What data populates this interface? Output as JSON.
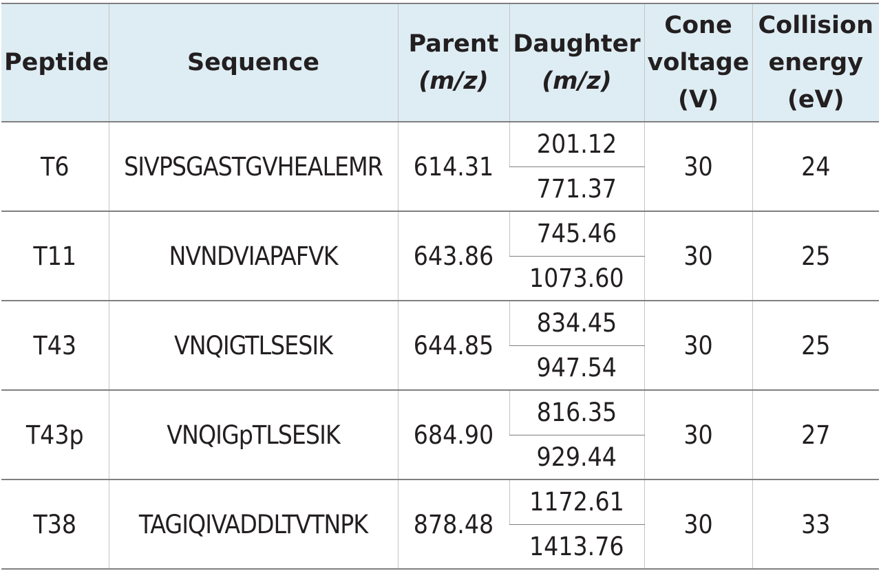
{
  "headers": {
    "peptide": "Peptide",
    "sequence": "Sequence",
    "parent": [
      "Parent",
      "(m/z)"
    ],
    "daughter": [
      "Daughter",
      "(m/z)"
    ],
    "cone_voltage": [
      "Cone",
      "voltage",
      "(V)"
    ],
    "collision_energy": [
      "Collision",
      "energy",
      "(eV)"
    ]
  },
  "rows": [
    {
      "peptide": "T6",
      "sequence": "SIVPSGASTGVHEALEMR",
      "parent": "614.31",
      "daughters": [
        "201.12",
        "771.37"
      ],
      "cone_voltage": "30",
      "collision_energy": "24"
    },
    {
      "peptide": "T11",
      "sequence": "NVNDVIAPAFVK",
      "parent": "643.86",
      "daughters": [
        "745.46",
        "1073.60"
      ],
      "cone_voltage": "30",
      "collision_energy": "25"
    },
    {
      "peptide": "T43",
      "sequence": "VNQIGTLSESIK",
      "parent": "644.85",
      "daughters": [
        "834.45",
        "947.54"
      ],
      "cone_voltage": "30",
      "collision_energy": "25"
    },
    {
      "peptide": "T43p",
      "sequence": "VNQIGpTLSESIK",
      "parent": "684.90",
      "daughters": [
        "816.35",
        "929.44"
      ],
      "cone_voltage": "30",
      "collision_energy": "27"
    },
    {
      "peptide": "T38",
      "sequence": "TAGIQIVADDLTVTNPK",
      "parent": "878.48",
      "daughters": [
        "1172.61",
        "1413.76"
      ],
      "cone_voltage": "30",
      "collision_energy": "33"
    }
  ]
}
